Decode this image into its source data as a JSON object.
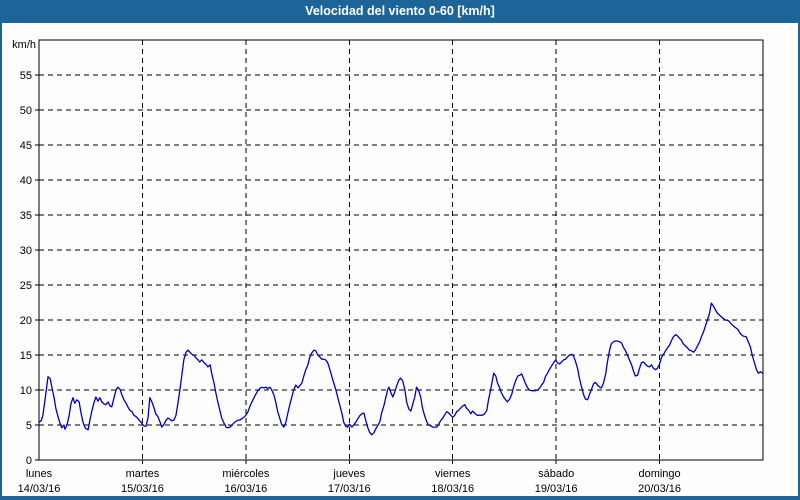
{
  "window": {
    "title": "Velocidad del viento 0-60 [km/h]"
  },
  "frame": {
    "titlebar_color": "#1d6598",
    "border_color": "#1d6598"
  },
  "chart_data": {
    "type": "line",
    "title": "Velocidad del viento 0-60 [km/h]",
    "series_name": "Velocidad del viento",
    "y_unit_label": "km/h",
    "ylim": [
      0,
      60
    ],
    "ytick_step": 5,
    "ytick_labels": [
      "0",
      "5",
      "10",
      "15",
      "20",
      "25",
      "30",
      "35",
      "40",
      "45",
      "50",
      "55"
    ],
    "grid": "dashed",
    "legend": "none",
    "line_color": "#0000bb",
    "x_axis": {
      "unit": "hours",
      "range": [
        0,
        168
      ],
      "day_tick_interval": 24
    },
    "days": [
      {
        "name": "lunes",
        "date": "14/03/16"
      },
      {
        "name": "martes",
        "date": "15/03/16"
      },
      {
        "name": "miércoles",
        "date": "16/03/16"
      },
      {
        "name": "jueves",
        "date": "17/03/16"
      },
      {
        "name": "viernes",
        "date": "18/03/16"
      },
      {
        "name": "sábado",
        "date": "19/03/16"
      },
      {
        "name": "domingo",
        "date": "20/03/16"
      }
    ],
    "points": [
      [
        0,
        5.4
      ],
      [
        0.5,
        5.6
      ],
      [
        0.9,
        6.4
      ],
      [
        1.4,
        8.6
      ],
      [
        1.9,
        11
      ],
      [
        2.1,
        11.9
      ],
      [
        2.6,
        11.6
      ],
      [
        3,
        10.4
      ],
      [
        3.5,
        8.9
      ],
      [
        3.9,
        7.4
      ],
      [
        4.4,
        6.2
      ],
      [
        4.9,
        5.2
      ],
      [
        5.3,
        4.6
      ],
      [
        5.8,
        5
      ],
      [
        6,
        4.4
      ],
      [
        6.5,
        5
      ],
      [
        7,
        6.4
      ],
      [
        7.4,
        8
      ],
      [
        7.9,
        8.9
      ],
      [
        8.3,
        8.1
      ],
      [
        8.8,
        8.6
      ],
      [
        9.3,
        8.3
      ],
      [
        9.7,
        6.9
      ],
      [
        10.2,
        5.4
      ],
      [
        10.7,
        4.6
      ],
      [
        11.4,
        4.3
      ],
      [
        11.8,
        5.7
      ],
      [
        12.3,
        7.1
      ],
      [
        12.8,
        8.3
      ],
      [
        13.2,
        9
      ],
      [
        13.7,
        8.4
      ],
      [
        14.1,
        8.9
      ],
      [
        14.6,
        8.3
      ],
      [
        15.1,
        8
      ],
      [
        15.5,
        7.9
      ],
      [
        16,
        8.3
      ],
      [
        16.5,
        7.7
      ],
      [
        16.9,
        7.6
      ],
      [
        17.4,
        8.9
      ],
      [
        17.9,
        10
      ],
      [
        18.3,
        10.4
      ],
      [
        18.8,
        10.1
      ],
      [
        19.2,
        9.4
      ],
      [
        19.7,
        8.6
      ],
      [
        20.2,
        8.1
      ],
      [
        20.6,
        7.6
      ],
      [
        21.1,
        7.1
      ],
      [
        21.6,
        6.9
      ],
      [
        22,
        6.4
      ],
      [
        22.5,
        6.2
      ],
      [
        23,
        5.9
      ],
      [
        23.4,
        5.6
      ],
      [
        23.9,
        5.2
      ],
      [
        24.3,
        4.9
      ],
      [
        24.8,
        4.8
      ],
      [
        25.3,
        6
      ],
      [
        25.7,
        8.9
      ],
      [
        26.2,
        8.3
      ],
      [
        26.7,
        7.4
      ],
      [
        27.1,
        6.6
      ],
      [
        27.6,
        6.2
      ],
      [
        28.1,
        5.4
      ],
      [
        28.5,
        4.7
      ],
      [
        29,
        5.1
      ],
      [
        29.4,
        5.6
      ],
      [
        29.9,
        6
      ],
      [
        30.4,
        5.8
      ],
      [
        30.8,
        5.6
      ],
      [
        31.3,
        5.7
      ],
      [
        31.8,
        6.4
      ],
      [
        32.2,
        8
      ],
      [
        32.7,
        10
      ],
      [
        33.2,
        12.4
      ],
      [
        33.6,
        14.3
      ],
      [
        34.1,
        15.4
      ],
      [
        34.6,
        15.7
      ],
      [
        35,
        15.4
      ],
      [
        35.5,
        15.1
      ],
      [
        35.9,
        15
      ],
      [
        36.4,
        14.6
      ],
      [
        36.9,
        14.3
      ],
      [
        37.3,
        14
      ],
      [
        37.8,
        14.3
      ],
      [
        38.3,
        13.9
      ],
      [
        38.7,
        13.7
      ],
      [
        39.2,
        13.3
      ],
      [
        39.7,
        13.6
      ],
      [
        40.1,
        12.3
      ],
      [
        40.6,
        11
      ],
      [
        41,
        9.7
      ],
      [
        41.5,
        8.3
      ],
      [
        42,
        7
      ],
      [
        42.4,
        6
      ],
      [
        42.9,
        5.3
      ],
      [
        43.4,
        4.7
      ],
      [
        43.8,
        4.6
      ],
      [
        44.3,
        4.7
      ],
      [
        44.8,
        5
      ],
      [
        45.2,
        5.3
      ],
      [
        45.7,
        5.5
      ],
      [
        46.1,
        5.7
      ],
      [
        46.6,
        5.7
      ],
      [
        47.1,
        5.9
      ],
      [
        47.5,
        6.1
      ],
      [
        48,
        6.4
      ],
      [
        48.5,
        6.9
      ],
      [
        48.9,
        7.6
      ],
      [
        49.4,
        8.3
      ],
      [
        49.9,
        8.9
      ],
      [
        50.3,
        9.4
      ],
      [
        50.8,
        9.9
      ],
      [
        51.2,
        10.2
      ],
      [
        51.7,
        10.4
      ],
      [
        52.2,
        10.3
      ],
      [
        52.6,
        10.4
      ],
      [
        53.1,
        10.2
      ],
      [
        53.6,
        10.4
      ],
      [
        54,
        10
      ],
      [
        54.5,
        9.3
      ],
      [
        55,
        8.1
      ],
      [
        55.4,
        6.9
      ],
      [
        55.9,
        5.9
      ],
      [
        56.3,
        5.1
      ],
      [
        56.8,
        4.7
      ],
      [
        57.3,
        5.4
      ],
      [
        57.7,
        6.6
      ],
      [
        58.2,
        7.9
      ],
      [
        58.7,
        9.1
      ],
      [
        59.1,
        10
      ],
      [
        59.6,
        10.7
      ],
      [
        60.1,
        10.3
      ],
      [
        60.5,
        10.6
      ],
      [
        61,
        11
      ],
      [
        61.4,
        11.9
      ],
      [
        61.9,
        12.9
      ],
      [
        62.4,
        13.6
      ],
      [
        62.8,
        14.6
      ],
      [
        63.3,
        15.3
      ],
      [
        63.8,
        15.7
      ],
      [
        64.2,
        15.6
      ],
      [
        64.7,
        15
      ],
      [
        65.2,
        14.7
      ],
      [
        65.6,
        14.4
      ],
      [
        66.1,
        14.4
      ],
      [
        66.5,
        14.3
      ],
      [
        67,
        13.9
      ],
      [
        67.5,
        12.9
      ],
      [
        68.2,
        11.4
      ],
      [
        68.9,
        10
      ],
      [
        69.6,
        8.3
      ],
      [
        70.3,
        6.6
      ],
      [
        70.7,
        5.4
      ],
      [
        71.2,
        4.8
      ],
      [
        71.6,
        4.7
      ],
      [
        72.1,
        5.1
      ],
      [
        72.6,
        4.7
      ],
      [
        73,
        5
      ],
      [
        73.5,
        5.4
      ],
      [
        74,
        5.9
      ],
      [
        74.4,
        6.3
      ],
      [
        74.9,
        6.6
      ],
      [
        75.4,
        6.7
      ],
      [
        75.8,
        5.7
      ],
      [
        76.3,
        4.6
      ],
      [
        76.7,
        4
      ],
      [
        77.2,
        3.6
      ],
      [
        77.7,
        3.9
      ],
      [
        78.1,
        4.4
      ],
      [
        78.6,
        4.9
      ],
      [
        79.1,
        5.5
      ],
      [
        79.5,
        6.7
      ],
      [
        80,
        7.7
      ],
      [
        80.5,
        9
      ],
      [
        80.9,
        10
      ],
      [
        81.2,
        10.4
      ],
      [
        81.6,
        9.7
      ],
      [
        82.1,
        9
      ],
      [
        82.5,
        9.6
      ],
      [
        83,
        10.6
      ],
      [
        83.5,
        11.4
      ],
      [
        83.9,
        11.7
      ],
      [
        84.4,
        11.3
      ],
      [
        84.9,
        10
      ],
      [
        85.3,
        8.3
      ],
      [
        85.8,
        7.3
      ],
      [
        86.3,
        7
      ],
      [
        86.7,
        7.9
      ],
      [
        87.2,
        9
      ],
      [
        87.6,
        10.4
      ],
      [
        88.1,
        9.9
      ],
      [
        88.6,
        8.9
      ],
      [
        89,
        7.4
      ],
      [
        89.5,
        6.3
      ],
      [
        90,
        5.4
      ],
      [
        90.4,
        5
      ],
      [
        90.9,
        4.9
      ],
      [
        91.3,
        4.7
      ],
      [
        91.8,
        4.7
      ],
      [
        92.3,
        4.7
      ],
      [
        92.7,
        5.1
      ],
      [
        93.2,
        5.6
      ],
      [
        93.7,
        6
      ],
      [
        94.1,
        6.4
      ],
      [
        94.6,
        6.9
      ],
      [
        95.1,
        6.7
      ],
      [
        95.5,
        6.4
      ],
      [
        96,
        6.1
      ],
      [
        96.5,
        6.4
      ],
      [
        96.9,
        6.9
      ],
      [
        97.4,
        7.1
      ],
      [
        97.8,
        7.4
      ],
      [
        98.3,
        7.7
      ],
      [
        98.8,
        7.9
      ],
      [
        99.2,
        7.4
      ],
      [
        99.7,
        7.1
      ],
      [
        100.2,
        6.6
      ],
      [
        100.6,
        7
      ],
      [
        101.1,
        6.7
      ],
      [
        101.6,
        6.4
      ],
      [
        102,
        6.4
      ],
      [
        102.5,
        6.4
      ],
      [
        102.9,
        6.4
      ],
      [
        103.4,
        6.6
      ],
      [
        103.9,
        7.1
      ],
      [
        104.3,
        8.6
      ],
      [
        104.8,
        10
      ],
      [
        105.3,
        11.7
      ],
      [
        105.5,
        12.4
      ],
      [
        106,
        12
      ],
      [
        106.4,
        11
      ],
      [
        106.9,
        10.3
      ],
      [
        107.3,
        9.6
      ],
      [
        107.8,
        9
      ],
      [
        108.3,
        8.6
      ],
      [
        108.7,
        8.3
      ],
      [
        109.2,
        8.7
      ],
      [
        109.7,
        9.4
      ],
      [
        110.1,
        10.4
      ],
      [
        110.6,
        11.3
      ],
      [
        111.1,
        12
      ],
      [
        111.5,
        12.1
      ],
      [
        112,
        12.3
      ],
      [
        112.4,
        11.7
      ],
      [
        112.9,
        10.9
      ],
      [
        113.4,
        10.3
      ],
      [
        113.8,
        10
      ],
      [
        114.3,
        9.9
      ],
      [
        114.8,
        9.9
      ],
      [
        115.2,
        9.9
      ],
      [
        115.7,
        10
      ],
      [
        116.2,
        10.3
      ],
      [
        116.6,
        10.7
      ],
      [
        117.1,
        11.1
      ],
      [
        117.5,
        11.9
      ],
      [
        118,
        12.4
      ],
      [
        118.5,
        13
      ],
      [
        118.9,
        13.4
      ],
      [
        119.4,
        13.9
      ],
      [
        119.9,
        14.3
      ],
      [
        120.3,
        13.9
      ],
      [
        120.8,
        13.7
      ],
      [
        121.3,
        14
      ],
      [
        121.7,
        14.3
      ],
      [
        122.2,
        14.4
      ],
      [
        122.6,
        14.7
      ],
      [
        123.1,
        15
      ],
      [
        123.6,
        15.1
      ],
      [
        124,
        14.9
      ],
      [
        124.5,
        14.1
      ],
      [
        125,
        13
      ],
      [
        125.4,
        11.7
      ],
      [
        125.9,
        10.4
      ],
      [
        126.4,
        9.3
      ],
      [
        126.8,
        8.7
      ],
      [
        127.3,
        8.6
      ],
      [
        127.7,
        9.3
      ],
      [
        128.2,
        10.1
      ],
      [
        128.7,
        10.9
      ],
      [
        129.1,
        11.1
      ],
      [
        129.6,
        10.7
      ],
      [
        130.1,
        10.4
      ],
      [
        130.5,
        10.3
      ],
      [
        131,
        11
      ],
      [
        131.5,
        12.3
      ],
      [
        131.9,
        14
      ],
      [
        132.4,
        15.7
      ],
      [
        132.8,
        16.6
      ],
      [
        133.3,
        16.9
      ],
      [
        133.8,
        17
      ],
      [
        134.2,
        17
      ],
      [
        134.7,
        16.9
      ],
      [
        135.2,
        16.7
      ],
      [
        135.6,
        16.1
      ],
      [
        136.1,
        15.6
      ],
      [
        136.6,
        14.9
      ],
      [
        137,
        14.3
      ],
      [
        137.5,
        13.6
      ],
      [
        138,
        12.6
      ],
      [
        138.4,
        12
      ],
      [
        138.9,
        12.1
      ],
      [
        139.3,
        13
      ],
      [
        139.8,
        13.9
      ],
      [
        140.3,
        14
      ],
      [
        140.7,
        13.7
      ],
      [
        141.2,
        13.4
      ],
      [
        141.7,
        13.3
      ],
      [
        142.1,
        13.6
      ],
      [
        142.6,
        13.1
      ],
      [
        143.1,
        12.9
      ],
      [
        143.5,
        13.1
      ],
      [
        144,
        13.7
      ],
      [
        144.4,
        14.6
      ],
      [
        144.9,
        15.1
      ],
      [
        145.4,
        15.6
      ],
      [
        145.8,
        16
      ],
      [
        146.3,
        16.4
      ],
      [
        146.8,
        17.1
      ],
      [
        147.2,
        17.6
      ],
      [
        147.7,
        17.9
      ],
      [
        148.2,
        17.7
      ],
      [
        148.6,
        17.4
      ],
      [
        149.1,
        17.1
      ],
      [
        149.5,
        16.6
      ],
      [
        150,
        16.3
      ],
      [
        150.5,
        16
      ],
      [
        150.9,
        15.7
      ],
      [
        151.4,
        15.6
      ],
      [
        151.9,
        15.4
      ],
      [
        152.3,
        15.7
      ],
      [
        152.8,
        16.3
      ],
      [
        153.3,
        16.9
      ],
      [
        153.7,
        17.6
      ],
      [
        154.2,
        18.3
      ],
      [
        154.6,
        19.1
      ],
      [
        155.1,
        20
      ],
      [
        155.6,
        21
      ],
      [
        156,
        22.4
      ],
      [
        156.5,
        22
      ],
      [
        157,
        21.4
      ],
      [
        157.4,
        21
      ],
      [
        157.9,
        20.7
      ],
      [
        158.6,
        20.3
      ],
      [
        159.3,
        20
      ],
      [
        160,
        19.9
      ],
      [
        160.7,
        19.4
      ],
      [
        161.4,
        19
      ],
      [
        162.1,
        18.7
      ],
      [
        162.8,
        18
      ],
      [
        163.4,
        17.7
      ],
      [
        164.1,
        17.6
      ],
      [
        164.6,
        16.9
      ],
      [
        165.1,
        16.1
      ],
      [
        165.5,
        15
      ],
      [
        166,
        13.9
      ],
      [
        166.5,
        12.9
      ],
      [
        166.9,
        12.4
      ],
      [
        167.4,
        12.6
      ],
      [
        167.9,
        12.4
      ]
    ]
  }
}
